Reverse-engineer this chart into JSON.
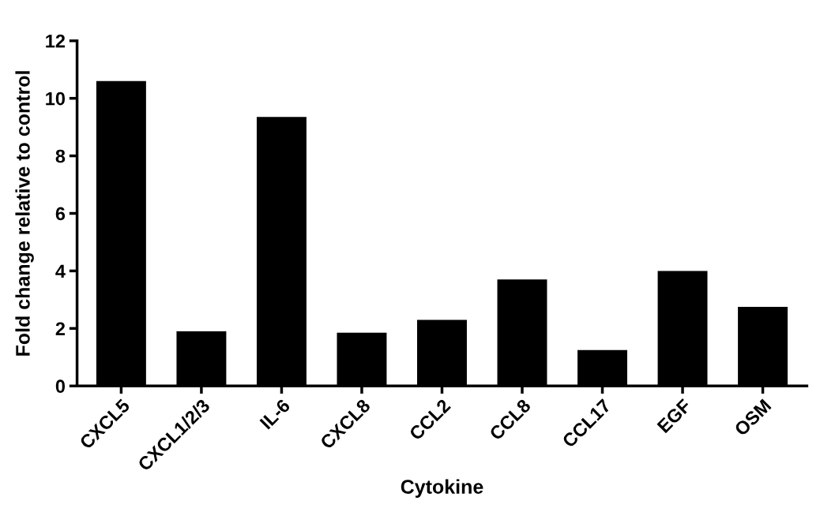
{
  "chart_data": {
    "type": "bar",
    "xlabel": "Cytokine",
    "ylabel": "Fold change relative to control",
    "categories": [
      "CXCL5",
      "CXCL1/2/3",
      "IL-6",
      "CXCL8",
      "CCL2",
      "CCL8",
      "CCL17",
      "EGF",
      "OSM"
    ],
    "values": [
      10.6,
      1.9,
      9.35,
      1.85,
      2.3,
      3.7,
      1.25,
      4.0,
      2.75
    ],
    "color": "#000000",
    "ylim": [
      0,
      12
    ],
    "yticks": [
      0,
      2,
      4,
      6,
      8,
      10,
      12
    ],
    "grid": false
  }
}
